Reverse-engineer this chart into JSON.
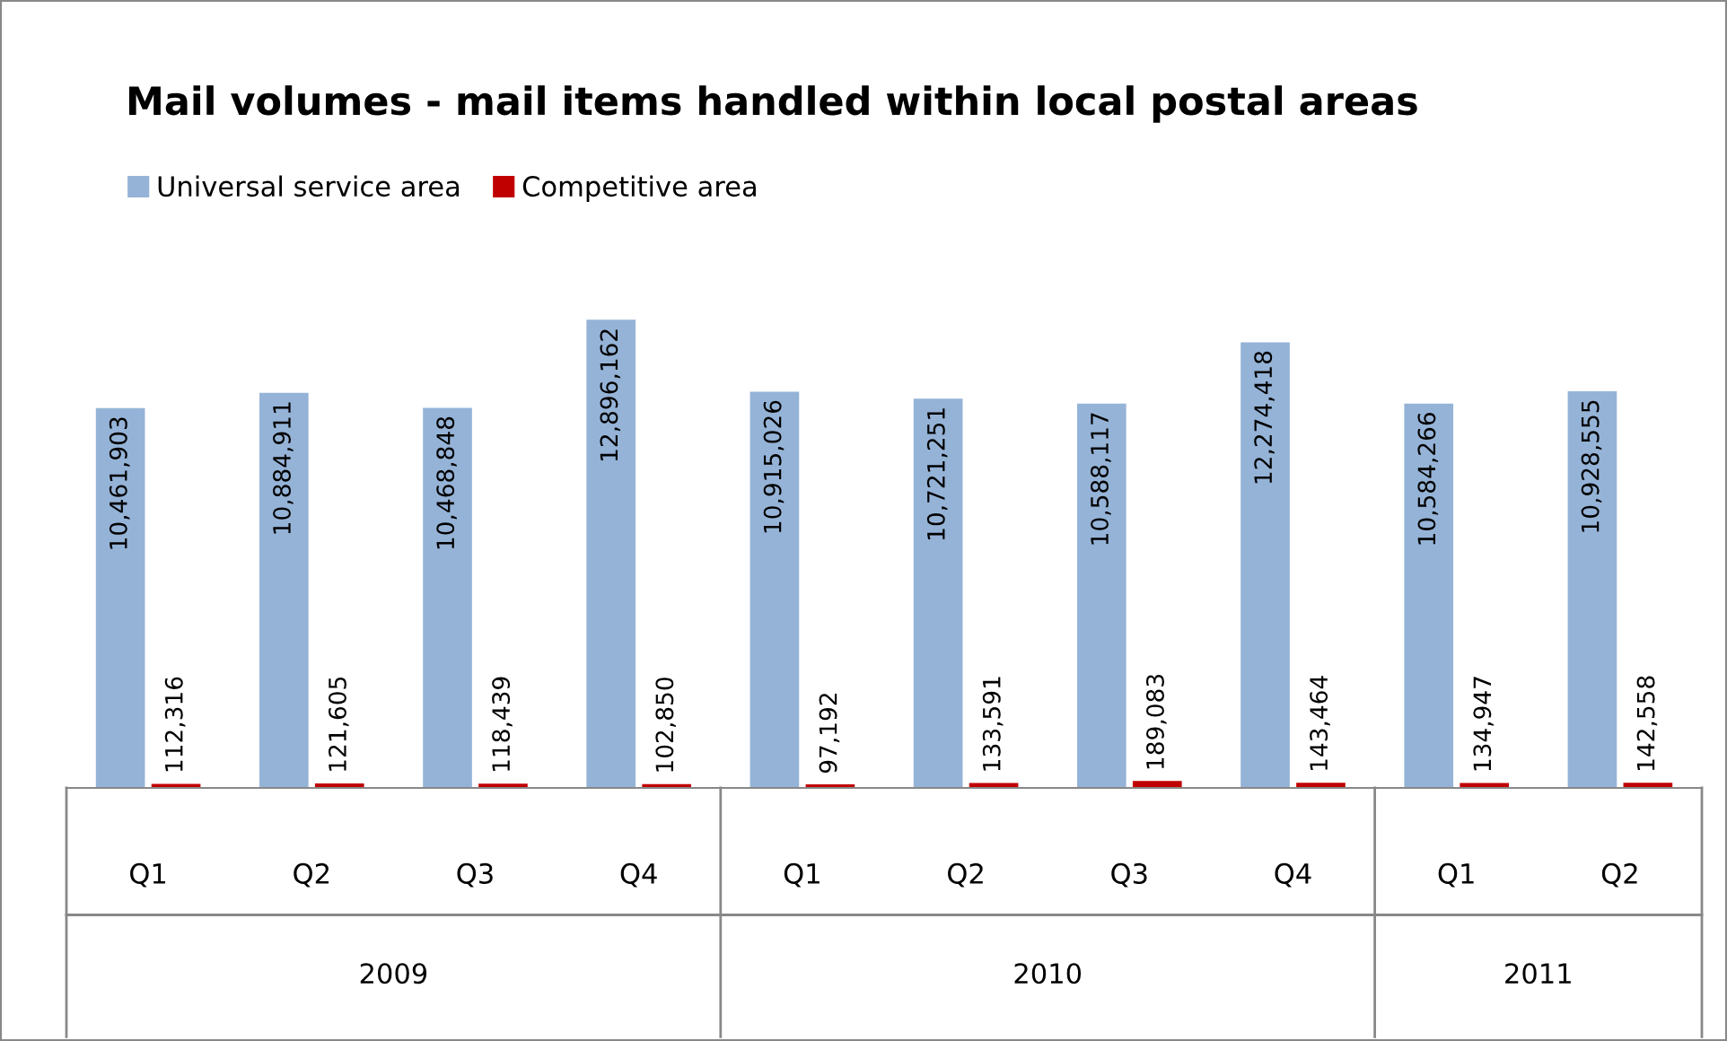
{
  "chart_data": {
    "type": "bar",
    "title": "Mail volumes - mail items handled within local postal areas",
    "categories": [
      "Q1",
      "Q2",
      "Q3",
      "Q4",
      "Q1",
      "Q2",
      "Q3",
      "Q4",
      "Q1",
      "Q2"
    ],
    "series": [
      {
        "name": "Universal service area",
        "color": "#95b3d7",
        "values": [
          10461903,
          10884911,
          10468848,
          12896162,
          10915026,
          10721251,
          10588117,
          12274418,
          10584266,
          10928555
        ],
        "value_labels": [
          "10,461,903",
          "10,884,911",
          "10,468,848",
          "12,896,162",
          "10,915,026",
          "10,721,251",
          "10,588,117",
          "12,274,418",
          "10,584,266",
          "10,928,555"
        ]
      },
      {
        "name": "Competitive area",
        "color": "#c00000",
        "values": [
          112316,
          121605,
          118439,
          102850,
          97192,
          133591,
          189083,
          143464,
          134947,
          142558
        ],
        "value_labels": [
          "112,316",
          "121,605",
          "118,439",
          "102,850",
          "97,192",
          "133,591",
          "189,083",
          "143,464",
          "134,947",
          "142,558"
        ]
      }
    ],
    "annotations": [
      "2009",
      "2010",
      "2011"
    ],
    "legend": "top left",
    "grid": false
  }
}
